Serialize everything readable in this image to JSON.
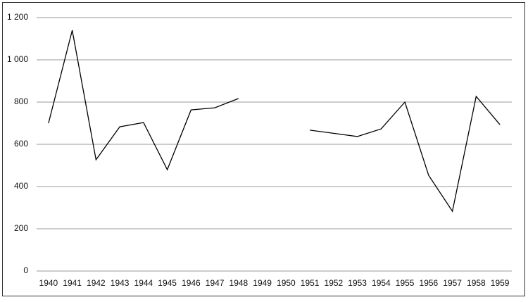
{
  "chart_data": {
    "type": "line",
    "categories": [
      1940,
      1941,
      1942,
      1943,
      1944,
      1945,
      1946,
      1947,
      1948,
      1949,
      1950,
      1951,
      1952,
      1953,
      1954,
      1955,
      1956,
      1957,
      1958,
      1959
    ],
    "values": [
      700,
      1140,
      527,
      683,
      703,
      480,
      763,
      773,
      817,
      null,
      null,
      667,
      652,
      637,
      673,
      800,
      453,
      283,
      827,
      693
    ],
    "color": "#000000",
    "ylim": [
      0,
      1200
    ],
    "yticks": [
      0,
      200,
      400,
      600,
      800,
      {
        "value": 1000,
        "label": "1 000"
      },
      {
        "value": 1200,
        "label": "1 200"
      }
    ],
    "grid": true
  }
}
